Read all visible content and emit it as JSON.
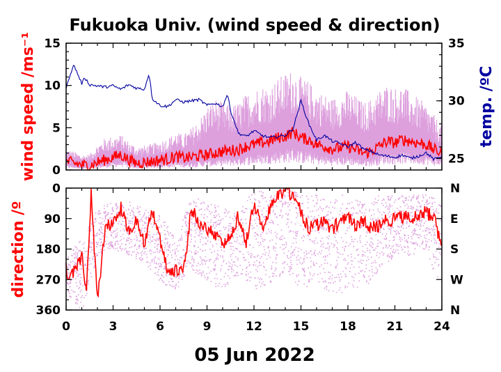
{
  "chart_data": [
    {
      "type": "line",
      "title": "Fukuoka Univ. (wind speed & direction)",
      "ylabel": "wind speed /ms⁻¹",
      "y2label": "temp. /ºC",
      "x_range": [
        0,
        24
      ],
      "ylim": [
        0,
        15
      ],
      "y2lim": [
        24,
        35
      ],
      "y_ticks": [
        "0",
        "5",
        "10",
        "15"
      ],
      "y2_ticks": [
        "25",
        "30",
        "35"
      ],
      "grid": false,
      "legend": "none",
      "colors": {
        "mean_wind": "#ff0000",
        "gust_wind": "#dda0dd",
        "temperature": "#0000a0"
      },
      "series": [
        {
          "key": "mean_wind",
          "x": [
            0,
            0.5,
            1,
            1.5,
            2,
            2.5,
            3,
            3.5,
            4,
            4.5,
            5,
            5.5,
            6,
            6.5,
            7,
            7.5,
            8,
            8.5,
            9,
            9.5,
            10,
            10.5,
            11,
            11.5,
            12,
            12.5,
            13,
            13.5,
            14,
            14.5,
            15,
            15.5,
            16,
            16.5,
            17,
            17.5,
            18,
            18.5,
            19,
            19.5,
            20,
            20.5,
            21,
            21.5,
            22,
            22.5,
            23,
            23.5,
            24
          ],
          "values": [
            1,
            0.8,
            0.6,
            0.5,
            0.9,
            1.2,
            1.5,
            1.8,
            1.2,
            0.8,
            0.9,
            1.0,
            1.2,
            1.3,
            1.6,
            1.4,
            1.5,
            1.7,
            1.8,
            2.0,
            2.2,
            2.3,
            2.4,
            2.8,
            3.0,
            3.2,
            3.4,
            3.8,
            4.0,
            4.5,
            3.8,
            3.6,
            3.0,
            2.8,
            2.5,
            2.6,
            2.8,
            2.4,
            2.0,
            2.2,
            2.8,
            3.4,
            3.2,
            3.6,
            3.4,
            3.2,
            3.0,
            2.4,
            2.0
          ]
        },
        {
          "key": "gust_wind",
          "x": [
            0,
            0.5,
            1,
            1.5,
            2,
            2.5,
            3,
            3.5,
            4,
            4.5,
            5,
            5.5,
            6,
            6.5,
            7,
            7.5,
            8,
            8.5,
            9,
            9.5,
            10,
            10.5,
            11,
            11.5,
            12,
            12.5,
            13,
            13.5,
            14,
            14.5,
            15,
            15.5,
            16,
            16.5,
            17,
            17.5,
            18,
            18.5,
            19,
            19.5,
            20,
            20.5,
            21,
            21.5,
            22,
            22.5,
            23,
            23.5,
            24
          ],
          "values": [
            2.5,
            2.2,
            1.8,
            1.9,
            3.0,
            3.8,
            4.0,
            4.2,
            3.4,
            2.8,
            2.9,
            3.1,
            3.5,
            3.8,
            4.5,
            4.2,
            5.0,
            6.0,
            7.5,
            8.5,
            8.0,
            7.6,
            8.0,
            9.0,
            9.6,
            10.0,
            10.0,
            10.8,
            11.5,
            12.0,
            11.0,
            10.5,
            9.5,
            9.0,
            8.5,
            9.0,
            9.5,
            8.8,
            8.0,
            8.5,
            9.5,
            10.2,
            9.8,
            10.0,
            9.2,
            8.5,
            7.8,
            6.5,
            5.2
          ]
        }
      ],
      "series_y2": [
        {
          "key": "temperature",
          "x": [
            0,
            0.25,
            0.5,
            1,
            1.2,
            1.5,
            2,
            2.5,
            3,
            3.5,
            4,
            4.5,
            5,
            5.3,
            5.5,
            6,
            6.5,
            7,
            7.5,
            8,
            8.5,
            9,
            9.5,
            10,
            10.3,
            10.5,
            11,
            11.5,
            12,
            12.5,
            13,
            13.5,
            14,
            14.5,
            15,
            15.5,
            16,
            16.5,
            17,
            17.5,
            18,
            18.5,
            19,
            19.5,
            20,
            20.5,
            21,
            21.5,
            22,
            22.5,
            23,
            23.5,
            24
          ],
          "values": [
            31,
            32.3,
            33.1,
            31.5,
            32.0,
            31.4,
            31.3,
            31.2,
            31.3,
            31.0,
            31.4,
            31.1,
            31.0,
            32.4,
            30.2,
            29.6,
            29.5,
            30.1,
            29.9,
            30.0,
            30.1,
            29.6,
            29.8,
            29.5,
            30.6,
            29.2,
            27.2,
            26.9,
            27.4,
            27.0,
            26.8,
            26.9,
            27.0,
            27.6,
            30.0,
            28.0,
            26.6,
            27.0,
            26.5,
            26.3,
            26.0,
            26.4,
            25.8,
            25.6,
            25.3,
            25.2,
            25.1,
            25.3,
            25.0,
            25.2,
            25.5,
            24.9,
            25.2
          ]
        }
      ]
    },
    {
      "type": "scatter",
      "ylabel": "direction /º",
      "x_range": [
        0,
        24
      ],
      "ylim": [
        0,
        360
      ],
      "y_inverted": true,
      "y_ticks": [
        "0",
        "90",
        "180",
        "270",
        "360"
      ],
      "y2_ticks": [
        "N",
        "E",
        "S",
        "W",
        "N"
      ],
      "xlabel": "05 Jun 2022",
      "x_ticks": [
        "0",
        "3",
        "6",
        "9",
        "12",
        "15",
        "18",
        "21",
        "24"
      ],
      "grid": false,
      "legend": "none",
      "colors": {
        "mean_direction": "#ff0000",
        "instant_direction": "#dda0dd"
      },
      "series": [
        {
          "key": "mean_direction",
          "x": [
            0,
            0.3,
            0.6,
            1,
            1.3,
            1.6,
            2,
            2.5,
            3,
            3.5,
            4,
            4.5,
            5,
            5.5,
            6,
            6.5,
            7,
            7.5,
            8,
            8.5,
            9,
            9.5,
            10,
            10.5,
            11,
            11.5,
            12,
            12.5,
            13,
            13.5,
            14,
            14.5,
            15,
            15.5,
            16,
            16.5,
            17,
            17.5,
            18,
            18.5,
            19,
            19.5,
            20,
            20.5,
            21,
            21.5,
            22,
            22.5,
            23,
            23.5,
            24
          ],
          "values": [
            240,
            270,
            230,
            200,
            300,
            20,
            330,
            120,
            100,
            60,
            130,
            100,
            160,
            60,
            150,
            250,
            240,
            250,
            60,
            100,
            120,
            140,
            160,
            150,
            80,
            160,
            40,
            120,
            60,
            20,
            10,
            20,
            70,
            120,
            110,
            100,
            120,
            100,
            90,
            110,
            100,
            120,
            110,
            95,
            90,
            85,
            90,
            80,
            70,
            90,
            170
          ]
        },
        {
          "key": "instant_direction",
          "x": [
            0,
            1,
            2,
            3,
            4,
            5,
            6,
            7,
            8,
            9,
            10,
            11,
            12,
            13,
            14,
            15,
            16,
            17,
            18,
            19,
            20,
            21,
            22,
            23,
            24
          ],
          "spread_low": [
            200,
            150,
            60,
            40,
            40,
            60,
            80,
            150,
            20,
            40,
            60,
            60,
            0,
            20,
            0,
            20,
            20,
            20,
            20,
            40,
            20,
            20,
            20,
            20,
            40
          ],
          "spread_high": [
            320,
            360,
            200,
            180,
            200,
            220,
            280,
            300,
            240,
            280,
            300,
            260,
            300,
            280,
            250,
            300,
            280,
            320,
            300,
            300,
            240,
            200,
            200,
            180,
            340
          ]
        }
      ]
    }
  ]
}
